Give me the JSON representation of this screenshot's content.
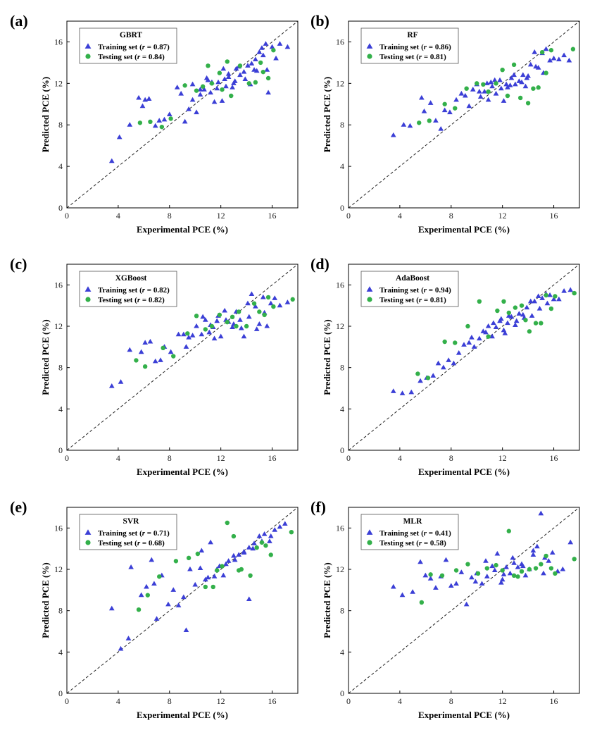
{
  "figure": {
    "theme": {
      "train": "#3b3fd6",
      "test": "#33b04a",
      "axis": "#000000"
    }
  },
  "chart_data": [
    {
      "type": "scatter",
      "panel": "(a)",
      "model": "GBRT",
      "xlabel": "Experimental PCE (%)",
      "ylabel": "Predicted PCE (%)",
      "xlim": [
        0,
        18
      ],
      "ylim": [
        0,
        18
      ],
      "xticks": [
        0,
        4,
        8,
        12,
        16
      ],
      "yticks": [
        0,
        4,
        8,
        12,
        16
      ],
      "diagonal": true,
      "series": [
        {
          "name": "Training set",
          "r": "0.87",
          "marker": "triangle",
          "x": [
            3.5,
            4.1,
            4.9,
            5.6,
            5.9,
            6.1,
            6.4,
            6.9,
            7.2,
            7.6,
            8.0,
            8.6,
            8.9,
            9.2,
            9.5,
            9.8,
            10.1,
            10.4,
            10.7,
            11.0,
            11.2,
            11.5,
            11.8,
            12.1,
            12.3,
            12.6,
            12.9,
            13.2,
            13.5,
            13.8,
            14.1,
            14.4,
            14.7,
            15.0,
            15.2,
            15.5,
            15.7,
            16.0,
            16.3,
            16.6,
            17.2,
            10.4,
            10.9,
            11.3,
            11.7,
            12.2,
            12.6,
            13.0,
            13.4,
            13.9,
            14.3,
            14.8,
            15.3,
            15.6,
            9.8,
            13.1,
            14.6,
            12.4
          ],
          "y": [
            4.5,
            6.8,
            8.0,
            10.6,
            9.8,
            10.4,
            10.5,
            7.9,
            8.4,
            8.5,
            9.0,
            11.6,
            11.0,
            8.3,
            9.5,
            10.4,
            9.2,
            11.4,
            11.4,
            12.3,
            11.1,
            10.2,
            12.1,
            10.3,
            12.4,
            12.6,
            11.6,
            13.4,
            12.8,
            13.1,
            13.7,
            13.9,
            14.3,
            15.0,
            15.4,
            15.8,
            11.1,
            15.5,
            14.4,
            15.8,
            15.5,
            10.9,
            12.5,
            12.1,
            11.5,
            13.4,
            12.9,
            12.0,
            13.6,
            12.4,
            11.9,
            13.2,
            14.7,
            13.3,
            11.9,
            12.2,
            13.3,
            11.7
          ]
        },
        {
          "name": "Testing set",
          "r": "0.84",
          "marker": "circle",
          "x": [
            5.7,
            6.5,
            7.4,
            8.1,
            9.2,
            10.1,
            10.6,
            11.3,
            11.9,
            12.5,
            12.8,
            13.5,
            14.2,
            14.7,
            15.1,
            15.3,
            15.7,
            16.1,
            11.0,
            12.1
          ],
          "y": [
            8.2,
            8.3,
            7.8,
            8.6,
            11.8,
            11.3,
            11.7,
            12.0,
            13.0,
            14.1,
            10.8,
            13.7,
            12.0,
            12.1,
            14.0,
            13.1,
            12.5,
            15.2,
            13.7,
            11.4
          ]
        }
      ]
    },
    {
      "type": "scatter",
      "panel": "(b)",
      "model": "RF",
      "xlabel": "Experimental PCE (%)",
      "ylabel": "Predicted PCE (%)",
      "xlim": [
        0,
        18
      ],
      "ylim": [
        0,
        18
      ],
      "xticks": [
        0,
        4,
        8,
        12,
        16
      ],
      "yticks": [
        0,
        4,
        8,
        12,
        16
      ],
      "diagonal": true,
      "series": [
        {
          "name": "Training set",
          "r": "0.86",
          "marker": "triangle",
          "x": [
            3.5,
            4.3,
            4.8,
            5.7,
            5.9,
            6.4,
            6.8,
            7.2,
            7.5,
            7.9,
            8.4,
            8.8,
            9.1,
            9.4,
            9.7,
            10.0,
            10.3,
            10.6,
            10.9,
            11.2,
            11.5,
            11.8,
            12.1,
            12.4,
            12.7,
            13.0,
            13.3,
            13.6,
            13.9,
            14.2,
            14.5,
            14.8,
            15.1,
            15.4,
            15.7,
            16.0,
            16.4,
            16.8,
            17.2,
            10.8,
            11.4,
            11.9,
            12.3,
            12.9,
            13.5,
            14.0,
            14.6,
            15.2,
            12.6,
            13.8,
            11.1,
            10.2
          ],
          "y": [
            7.0,
            8.0,
            7.9,
            10.6,
            9.3,
            10.1,
            8.4,
            7.6,
            9.4,
            9.2,
            10.4,
            11.0,
            10.8,
            9.8,
            11.4,
            11.9,
            10.7,
            11.2,
            10.4,
            11.7,
            11.0,
            12.3,
            10.3,
            11.6,
            12.5,
            11.9,
            12.2,
            12.8,
            12.5,
            13.8,
            15.0,
            13.5,
            14.9,
            15.3,
            14.2,
            14.4,
            14.3,
            14.7,
            14.2,
            12.0,
            12.3,
            11.5,
            11.9,
            12.8,
            12.1,
            12.7,
            13.6,
            13.0,
            11.8,
            11.7,
            12.1,
            11.2
          ]
        },
        {
          "name": "Testing set",
          "r": "0.81",
          "marker": "circle",
          "x": [
            5.5,
            6.3,
            7.5,
            8.3,
            9.2,
            10.0,
            10.9,
            11.5,
            12.0,
            12.4,
            12.9,
            13.4,
            14.0,
            14.4,
            14.8,
            15.1,
            15.4,
            15.8,
            17.5,
            10.5
          ],
          "y": [
            8.2,
            8.4,
            10.0,
            9.6,
            11.5,
            12.0,
            11.2,
            12.0,
            13.3,
            10.8,
            13.8,
            10.6,
            10.1,
            11.5,
            11.6,
            15.0,
            13.0,
            15.2,
            15.3,
            11.9
          ]
        }
      ]
    },
    {
      "type": "scatter",
      "panel": "(c)",
      "model": "XGBoost",
      "xlabel": "Experimental PCE (%)",
      "ylabel": "Predicted PCE (%)",
      "xlim": [
        0,
        18
      ],
      "ylim": [
        0,
        18
      ],
      "xticks": [
        0,
        4,
        8,
        12,
        16
      ],
      "yticks": [
        0,
        4,
        8,
        12,
        16
      ],
      "diagonal": true,
      "series": [
        {
          "name": "Training set",
          "r": "0.82",
          "marker": "triangle",
          "x": [
            3.5,
            4.2,
            4.9,
            5.8,
            6.1,
            6.5,
            6.9,
            7.3,
            7.6,
            8.1,
            8.7,
            9.1,
            9.5,
            9.8,
            10.1,
            10.5,
            10.8,
            11.1,
            11.4,
            11.7,
            12.0,
            12.3,
            12.6,
            12.9,
            13.2,
            13.5,
            13.8,
            14.1,
            14.4,
            14.7,
            15.0,
            15.3,
            15.6,
            15.9,
            16.2,
            16.6,
            17.2,
            10.6,
            11.2,
            11.8,
            12.4,
            13.0,
            13.6,
            14.2,
            14.8,
            15.4,
            9.3,
            11.5
          ],
          "y": [
            6.2,
            6.6,
            9.7,
            9.5,
            10.4,
            10.5,
            8.6,
            8.7,
            10.0,
            9.5,
            11.2,
            11.2,
            10.9,
            11.1,
            12.0,
            11.2,
            12.6,
            11.4,
            11.9,
            12.5,
            11.0,
            13.5,
            12.4,
            11.9,
            13.4,
            12.6,
            11.0,
            14.2,
            15.1,
            13.9,
            12.2,
            14.8,
            12.0,
            14.2,
            14.7,
            14.0,
            14.3,
            12.9,
            12.1,
            13.0,
            12.6,
            12.2,
            11.8,
            12.9,
            11.7,
            13.3,
            10.0,
            10.8
          ]
        },
        {
          "name": "Testing set",
          "r": "0.82",
          "marker": "circle",
          "x": [
            5.4,
            6.1,
            7.5,
            8.3,
            9.4,
            10.1,
            10.8,
            11.3,
            11.9,
            12.5,
            12.9,
            13.4,
            14.0,
            14.6,
            15.0,
            15.4,
            15.7,
            16.1,
            17.6,
            13.2
          ],
          "y": [
            8.7,
            8.1,
            9.9,
            9.1,
            11.3,
            13.0,
            11.7,
            12.0,
            13.1,
            12.4,
            12.9,
            13.4,
            12.0,
            14.2,
            13.4,
            13.1,
            14.8,
            13.9,
            14.6,
            12.0
          ]
        }
      ]
    },
    {
      "type": "scatter",
      "panel": "(d)",
      "model": "AdaBoost",
      "xlabel": "Experimental PCE (%)",
      "ylabel": "Predicted PCE (%)",
      "xlim": [
        0,
        18
      ],
      "ylim": [
        0,
        18
      ],
      "xticks": [
        0,
        4,
        8,
        12,
        16
      ],
      "yticks": [
        0,
        4,
        8,
        12,
        16
      ],
      "diagonal": true,
      "series": [
        {
          "name": "Training set",
          "r": "0.94",
          "marker": "triangle",
          "x": [
            3.5,
            4.2,
            4.9,
            5.6,
            6.1,
            6.6,
            7.0,
            7.4,
            7.8,
            8.2,
            8.6,
            9.0,
            9.4,
            9.8,
            10.2,
            10.5,
            10.9,
            11.2,
            11.5,
            11.8,
            12.1,
            12.4,
            12.7,
            13.0,
            13.3,
            13.6,
            13.9,
            14.2,
            14.5,
            14.8,
            15.1,
            15.4,
            15.7,
            16.0,
            16.4,
            16.8,
            17.3,
            10.7,
            11.3,
            11.9,
            12.5,
            13.1,
            13.7,
            14.3,
            14.9,
            15.5,
            9.6,
            12.2
          ],
          "y": [
            5.7,
            5.5,
            5.6,
            6.7,
            7.0,
            7.2,
            8.4,
            8.0,
            8.7,
            8.4,
            9.4,
            10.2,
            10.4,
            10.0,
            10.8,
            11.5,
            12.0,
            11.0,
            11.9,
            12.5,
            11.6,
            12.3,
            12.9,
            12.1,
            13.2,
            13.1,
            13.8,
            14.4,
            14.4,
            14.9,
            14.7,
            15.1,
            15.0,
            14.6,
            14.6,
            15.4,
            15.5,
            11.4,
            12.3,
            12.7,
            13.0,
            12.5,
            12.8,
            13.0,
            13.7,
            14.2,
            10.9,
            11.3
          ]
        },
        {
          "name": "Testing set",
          "r": "0.81",
          "marker": "circle",
          "x": [
            5.4,
            6.2,
            7.5,
            8.3,
            9.3,
            10.2,
            10.9,
            11.6,
            12.1,
            12.5,
            13.0,
            13.5,
            14.1,
            14.6,
            15.0,
            15.4,
            15.8,
            16.1,
            17.6,
            13.8
          ],
          "y": [
            7.4,
            7.0,
            10.5,
            10.4,
            12.0,
            14.4,
            11.0,
            13.5,
            14.4,
            13.3,
            13.8,
            14.0,
            11.5,
            12.3,
            12.3,
            15.0,
            13.7,
            14.9,
            15.2,
            12.6
          ]
        }
      ]
    },
    {
      "type": "scatter",
      "panel": "(e)",
      "model": "SVR",
      "xlabel": "Experimental PCE (%)",
      "ylabel": "Predicted PCE (%)",
      "xlim": [
        0,
        18
      ],
      "ylim": [
        0,
        18
      ],
      "xticks": [
        0,
        4,
        8,
        12,
        16
      ],
      "yticks": [
        0,
        4,
        8,
        12,
        16
      ],
      "diagonal": true,
      "series": [
        {
          "name": "Training set",
          "r": "0.71",
          "marker": "triangle",
          "x": [
            3.5,
            4.2,
            4.8,
            5.0,
            5.8,
            6.2,
            6.6,
            7.0,
            7.4,
            7.9,
            8.3,
            8.7,
            9.1,
            9.3,
            9.6,
            10.0,
            10.4,
            10.8,
            11.2,
            11.5,
            11.9,
            12.2,
            12.6,
            13.0,
            13.4,
            13.8,
            14.2,
            14.6,
            15.0,
            15.4,
            15.8,
            16.2,
            16.6,
            17.0,
            11.0,
            11.7,
            12.4,
            13.1,
            13.8,
            14.5,
            15.2,
            15.9,
            14.2,
            10.5,
            6.8
          ],
          "y": [
            8.2,
            4.3,
            5.3,
            12.2,
            9.5,
            10.3,
            12.9,
            7.2,
            11.4,
            8.6,
            10.0,
            8.5,
            9.3,
            6.1,
            12.0,
            10.5,
            12.1,
            11.0,
            14.6,
            11.3,
            12.3,
            11.4,
            12.8,
            13.3,
            13.4,
            13.7,
            14.1,
            14.5,
            15.2,
            15.4,
            14.7,
            15.8,
            16.1,
            16.4,
            11.2,
            12.0,
            12.5,
            12.9,
            13.6,
            14.0,
            14.7,
            15.2,
            9.1,
            13.8,
            10.6
          ]
        },
        {
          "name": "Testing set",
          "r": "0.68",
          "marker": "circle",
          "x": [
            5.6,
            6.3,
            7.2,
            8.5,
            9.5,
            10.2,
            10.8,
            11.4,
            12.1,
            12.5,
            13.0,
            13.6,
            14.3,
            14.8,
            15.2,
            15.5,
            15.9,
            17.5,
            11.7,
            13.4
          ],
          "y": [
            8.1,
            9.5,
            11.3,
            12.8,
            13.1,
            13.5,
            10.3,
            10.3,
            12.3,
            16.5,
            15.2,
            12.0,
            11.4,
            14.1,
            14.6,
            14.3,
            13.4,
            15.6,
            11.9,
            11.9
          ]
        }
      ]
    },
    {
      "type": "scatter",
      "panel": "(f)",
      "model": "MLR",
      "xlabel": "Experimental PCE (%)",
      "ylabel": "Predicted PCE (%)",
      "xlim": [
        0,
        18
      ],
      "ylim": [
        0,
        18
      ],
      "xticks": [
        0,
        4,
        8,
        12,
        16
      ],
      "yticks": [
        0,
        4,
        8,
        12,
        16
      ],
      "diagonal": true,
      "series": [
        {
          "name": "Training set",
          "r": "0.41",
          "marker": "triangle",
          "x": [
            3.5,
            4.2,
            5.0,
            5.6,
            6.0,
            6.4,
            6.8,
            7.2,
            7.6,
            8.0,
            8.4,
            8.8,
            9.2,
            9.6,
            10.0,
            10.4,
            10.8,
            11.2,
            11.6,
            12.0,
            12.3,
            12.6,
            12.9,
            13.2,
            13.5,
            13.8,
            14.1,
            14.4,
            14.7,
            15.0,
            15.3,
            15.6,
            15.9,
            16.3,
            16.7,
            17.3,
            9.9,
            10.7,
            11.4,
            12.1,
            12.8,
            13.6,
            14.4,
            15.2,
            11.9
          ],
          "y": [
            10.3,
            9.5,
            9.8,
            12.7,
            11.4,
            11.1,
            10.2,
            11.3,
            12.9,
            10.4,
            10.6,
            11.7,
            8.6,
            11.2,
            11.6,
            10.6,
            11.3,
            12.3,
            13.5,
            11.0,
            12.2,
            11.6,
            12.6,
            12.2,
            12.5,
            11.4,
            12.0,
            13.4,
            14.2,
            17.4,
            13.1,
            12.8,
            13.6,
            11.8,
            12.0,
            14.6,
            10.8,
            12.8,
            11.9,
            11.5,
            13.1,
            12.3,
            13.8,
            11.6,
            10.7
          ]
        },
        {
          "name": "Testing set",
          "r": "0.58",
          "marker": "circle",
          "x": [
            5.7,
            6.4,
            7.3,
            8.4,
            9.3,
            10.1,
            10.8,
            11.5,
            12.0,
            12.5,
            12.9,
            13.5,
            14.1,
            14.6,
            15.0,
            15.4,
            15.8,
            16.1,
            17.6,
            13.2
          ],
          "y": [
            8.8,
            11.5,
            11.4,
            11.9,
            12.5,
            11.6,
            12.1,
            12.4,
            11.9,
            15.7,
            11.4,
            11.8,
            12.0,
            12.1,
            12.5,
            13.3,
            12.1,
            11.6,
            13.0,
            11.3
          ]
        }
      ]
    }
  ]
}
